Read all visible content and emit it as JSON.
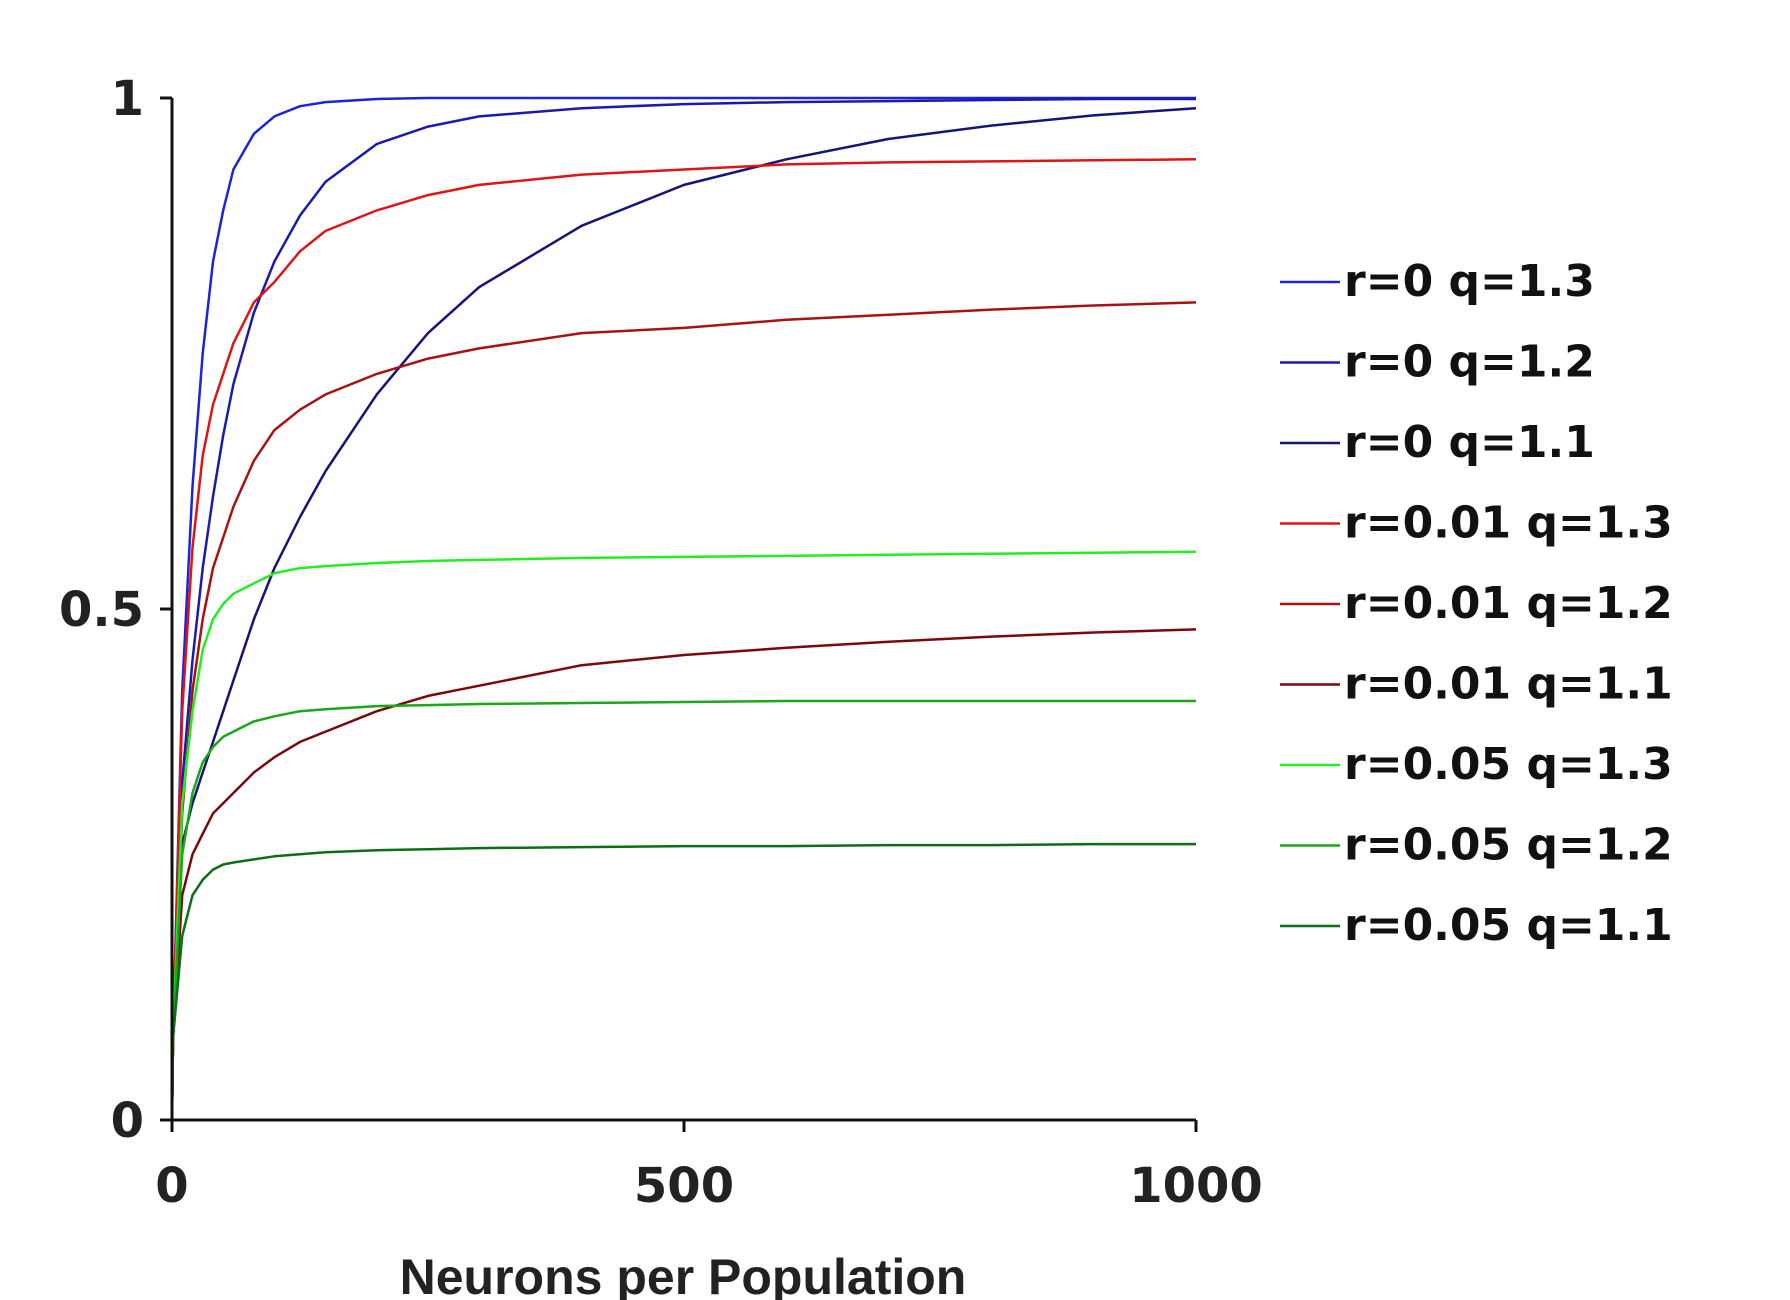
{
  "chart_data": {
    "type": "line",
    "title": "",
    "xlabel": "Neurons per Population",
    "ylabel": "",
    "xlim": [
      0,
      1000
    ],
    "ylim": [
      0,
      1
    ],
    "x_ticks": [
      "0",
      "500",
      "1000"
    ],
    "y_ticks": [
      "0",
      "0.5",
      "1"
    ],
    "grid": false,
    "legend_position": "right",
    "x": [
      1,
      10,
      20,
      30,
      40,
      50,
      60,
      80,
      100,
      125,
      150,
      200,
      250,
      300,
      400,
      500,
      600,
      700,
      800,
      900,
      1000
    ],
    "series": [
      {
        "name": "r=0 q=1.3",
        "color": "#1c24d8",
        "values": [
          0.08,
          0.42,
          0.62,
          0.75,
          0.84,
          0.89,
          0.93,
          0.965,
          0.982,
          0.992,
          0.996,
          0.999,
          1.0,
          1.0,
          1.0,
          1.0,
          1.0,
          1.0,
          1.0,
          1.0,
          1.0
        ]
      },
      {
        "name": "r=0 q=1.2",
        "color": "#1a1ab0",
        "values": [
          0.08,
          0.33,
          0.45,
          0.54,
          0.61,
          0.67,
          0.72,
          0.79,
          0.84,
          0.885,
          0.918,
          0.955,
          0.972,
          0.982,
          0.99,
          0.994,
          0.996,
          0.997,
          0.998,
          0.999,
          0.999
        ]
      },
      {
        "name": "r=0 q=1.1",
        "color": "#14147a",
        "values": [
          0.08,
          0.27,
          0.31,
          0.34,
          0.37,
          0.4,
          0.43,
          0.49,
          0.54,
          0.59,
          0.635,
          0.71,
          0.77,
          0.815,
          0.875,
          0.915,
          0.94,
          0.96,
          0.973,
          0.983,
          0.99
        ]
      },
      {
        "name": "r=0.01 q=1.3",
        "color": "#e01414",
        "values": [
          0.08,
          0.4,
          0.56,
          0.65,
          0.7,
          0.73,
          0.76,
          0.8,
          0.82,
          0.85,
          0.87,
          0.89,
          0.905,
          0.915,
          0.925,
          0.93,
          0.935,
          0.937,
          0.938,
          0.939,
          0.94
        ]
      },
      {
        "name": "r=0.01 q=1.2",
        "color": "#a81212",
        "values": [
          0.08,
          0.3,
          0.42,
          0.49,
          0.54,
          0.57,
          0.6,
          0.645,
          0.675,
          0.695,
          0.71,
          0.73,
          0.745,
          0.755,
          0.77,
          0.775,
          0.783,
          0.788,
          0.793,
          0.797,
          0.8
        ]
      },
      {
        "name": "r=0.01 q=1.1",
        "color": "#7a0a0a",
        "values": [
          0.08,
          0.22,
          0.26,
          0.28,
          0.3,
          0.31,
          0.32,
          0.34,
          0.355,
          0.37,
          0.38,
          0.4,
          0.415,
          0.425,
          0.445,
          0.455,
          0.462,
          0.468,
          0.473,
          0.477,
          0.48
        ]
      },
      {
        "name": "r=0.05 q=1.3",
        "color": "#22ee22",
        "values": [
          0.08,
          0.31,
          0.4,
          0.46,
          0.49,
          0.505,
          0.515,
          0.525,
          0.535,
          0.54,
          0.542,
          0.545,
          0.547,
          0.548,
          0.55,
          0.551,
          0.552,
          0.553,
          0.554,
          0.555,
          0.556
        ]
      },
      {
        "name": "r=0.05 q=1.2",
        "color": "#18a818",
        "values": [
          0.08,
          0.26,
          0.32,
          0.35,
          0.365,
          0.375,
          0.38,
          0.39,
          0.395,
          0.4,
          0.402,
          0.405,
          0.406,
          0.407,
          0.408,
          0.409,
          0.41,
          0.41,
          0.41,
          0.41,
          0.41
        ]
      },
      {
        "name": "r=0.05 q=1.1",
        "color": "#0e6e14",
        "values": [
          0.08,
          0.18,
          0.22,
          0.235,
          0.245,
          0.25,
          0.252,
          0.255,
          0.258,
          0.26,
          0.262,
          0.264,
          0.265,
          0.266,
          0.267,
          0.268,
          0.268,
          0.269,
          0.269,
          0.27,
          0.27
        ]
      }
    ]
  }
}
